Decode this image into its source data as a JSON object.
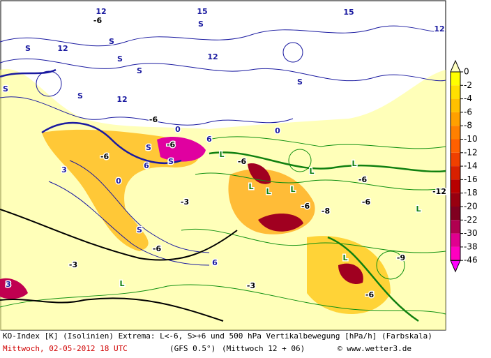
{
  "colorbar": {
    "ticks": [
      0,
      -2,
      -4,
      -6,
      -8,
      -10,
      -12,
      -14,
      -16,
      -18,
      -20,
      -22,
      -30,
      -38,
      -46
    ],
    "colors": [
      "#ffffc0",
      "#ffff00",
      "#ffe000",
      "#ffc000",
      "#ffa000",
      "#ff8000",
      "#ff6000",
      "#f04000",
      "#d82000",
      "#b80000",
      "#980010",
      "#800020",
      "#b00050",
      "#e00090",
      "#ff00c0",
      "#ff00ff"
    ]
  },
  "map_labels": [
    "12",
    "12",
    "12",
    "12",
    "15",
    "15",
    "12",
    "S",
    "S",
    "S",
    "S",
    "S",
    "S",
    "S",
    "S",
    "S",
    "S",
    "S",
    "-6",
    "-6",
    "-6",
    "6",
    "-6",
    "6",
    "-6",
    "3",
    "-3",
    "-3",
    "0",
    "0",
    "0",
    "L",
    "L",
    "L",
    "L",
    "L",
    "L",
    "L",
    "L",
    "L",
    "-6",
    "-6",
    "-8",
    "-6",
    "-6",
    "6",
    "-12",
    "-9",
    "-3",
    "-6",
    "3"
  ],
  "footer": {
    "line1": "KO-Index [K] (Isolinien) Extrema: L<-6, S>+6 und 500 hPa Vertikalbewegung [hPa/h] (Farbskala)",
    "date": "Mittwoch, 02-05-2012  18 UTC",
    "model": "(GFS 0.5°)",
    "run": "(Mittwoch 12 + 06)",
    "credit": "© www.wetter3.de"
  }
}
